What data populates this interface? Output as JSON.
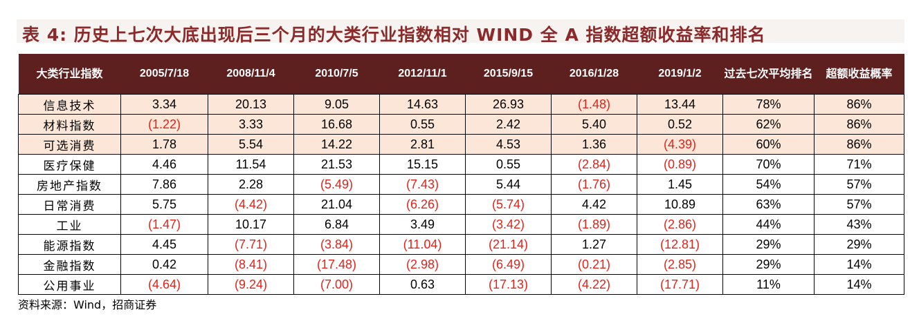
{
  "title": "表 4: 历史上七次大底出现后三个月的大类行业指数相对 WIND 全 A 指数超额收益率和排名",
  "headers": [
    "大类行业指数",
    "2005/7/18",
    "2008/11/4",
    "2010/7/5",
    "2012/11/1",
    "2015/9/15",
    "2016/1/28",
    "2019/1/2",
    "过去七次平均排名",
    "超额收益概率"
  ],
  "rows": [
    {
      "name": "信息技术",
      "values": [
        "3.34",
        "20.13",
        "9.05",
        "14.63",
        "26.93",
        "(1.48)",
        "13.44",
        "78%",
        "86%"
      ],
      "shaded": true
    },
    {
      "name": "材料指数",
      "values": [
        "(1.22)",
        "3.33",
        "16.68",
        "0.55",
        "2.42",
        "5.40",
        "0.52",
        "62%",
        "86%"
      ],
      "shaded": true
    },
    {
      "name": "可选消费",
      "values": [
        "1.78",
        "5.54",
        "14.22",
        "2.81",
        "4.53",
        "1.36",
        "(4.39)",
        "60%",
        "86%"
      ],
      "shaded": true
    },
    {
      "name": "医疗保健",
      "values": [
        "4.46",
        "11.54",
        "21.53",
        "15.15",
        "0.55",
        "(2.84)",
        "(0.89)",
        "70%",
        "71%"
      ],
      "shaded": false
    },
    {
      "name": "房地产指数",
      "values": [
        "7.86",
        "2.28",
        "(5.49)",
        "(7.43)",
        "5.44",
        "(1.76)",
        "1.45",
        "54%",
        "57%"
      ],
      "shaded": false
    },
    {
      "name": "日常消费",
      "values": [
        "5.75",
        "(4.42)",
        "21.04",
        "(6.26)",
        "(5.74)",
        "4.42",
        "10.89",
        "63%",
        "57%"
      ],
      "shaded": false
    },
    {
      "name": "工业",
      "values": [
        "(1.47)",
        "10.17",
        "6.84",
        "3.49",
        "(3.42)",
        "(1.89)",
        "(2.86)",
        "44%",
        "43%"
      ],
      "shaded": false
    },
    {
      "name": "能源指数",
      "values": [
        "4.45",
        "(7.71)",
        "(3.84)",
        "(11.04)",
        "(21.14)",
        "1.27",
        "(12.81)",
        "29%",
        "29%"
      ],
      "shaded": false
    },
    {
      "name": "金融指数",
      "values": [
        "0.42",
        "(8.41)",
        "(17.48)",
        "(2.98)",
        "(6.49)",
        "(0.21)",
        "(2.85)",
        "29%",
        "14%"
      ],
      "shaded": false
    },
    {
      "name": "公用事业",
      "values": [
        "(4.64)",
        "(9.24)",
        "(7.00)",
        "0.63",
        "(17.13)",
        "(4.22)",
        "(17.71)",
        "11%",
        "14%"
      ],
      "shaded": false
    }
  ],
  "source": "资料来源：Wind，招商证券",
  "colors": {
    "header_bg": "#5e1f1f",
    "highlight_row": "#fbe6d8",
    "negative": "#e2231a",
    "title": "#8a2a2a"
  }
}
